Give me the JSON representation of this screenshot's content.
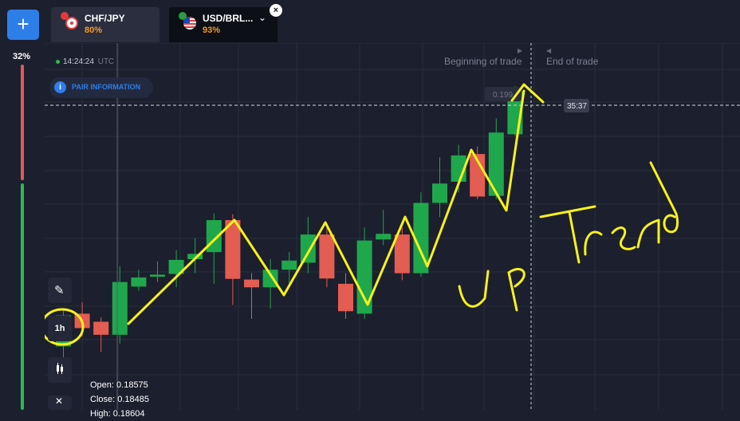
{
  "header": {
    "add_button": "+",
    "tabs": [
      {
        "name": "CHF/JPY",
        "payout": "80%"
      },
      {
        "name": "USD/BRL...",
        "payout": "93%"
      }
    ],
    "close_symbol": "×",
    "dropdown_symbol": "⌄"
  },
  "sidebar": {
    "sentiment_percent": "32%",
    "sentiment_value": 0.32
  },
  "chart": {
    "time": "14:24:24",
    "timezone": "UTC",
    "pair_info_label": "PAIR INFORMATION",
    "pair_info_icon": "i",
    "beginning_label": "Beginning of trade",
    "end_label": "End of trade",
    "price_label": "0.199",
    "countdown": "35:37"
  },
  "toolbar": {
    "timeframe": "1h"
  },
  "ohlc": {
    "open_label": "Open:",
    "open_value": "0.18575",
    "close_label": "Close:",
    "close_value": "0.18485",
    "high_label": "High:",
    "high_value": "0.18604"
  },
  "annotation": {
    "text": "UP Trend"
  },
  "colors": {
    "up": "#1fa74c",
    "down": "#e35d52",
    "accent": "#2e7ee8",
    "payout": "#f59a23",
    "annotation": "#f7f21a"
  },
  "candles": [
    {
      "o": 0.18392,
      "c": 0.1848,
      "h": 0.185,
      "l": 0.1836
    },
    {
      "o": 0.18485,
      "c": 0.18444,
      "h": 0.18517,
      "l": 0.1842
    },
    {
      "o": 0.18462,
      "c": 0.18425,
      "h": 0.18475,
      "l": 0.18376
    },
    {
      "o": 0.18425,
      "c": 0.18575,
      "h": 0.1862,
      "l": 0.184
    },
    {
      "o": 0.18562,
      "c": 0.18588,
      "h": 0.1861,
      "l": 0.1855
    },
    {
      "o": 0.1859,
      "c": 0.18596,
      "h": 0.18634,
      "l": 0.18575
    },
    {
      "o": 0.18598,
      "c": 0.18638,
      "h": 0.18666,
      "l": 0.1856
    },
    {
      "o": 0.1864,
      "c": 0.18655,
      "h": 0.187,
      "l": 0.186
    },
    {
      "o": 0.1866,
      "c": 0.18751,
      "h": 0.1877,
      "l": 0.1857
    },
    {
      "o": 0.18751,
      "c": 0.18584,
      "h": 0.18768,
      "l": 0.1851
    },
    {
      "o": 0.18582,
      "c": 0.1856,
      "h": 0.186,
      "l": 0.1847
    },
    {
      "o": 0.1856,
      "c": 0.1861,
      "h": 0.1864,
      "l": 0.185
    },
    {
      "o": 0.1861,
      "c": 0.18636,
      "h": 0.1866,
      "l": 0.1857
    },
    {
      "o": 0.1863,
      "c": 0.1871,
      "h": 0.1876,
      "l": 0.186
    },
    {
      "o": 0.1871,
      "c": 0.18585,
      "h": 0.1873,
      "l": 0.1856
    },
    {
      "o": 0.1857,
      "c": 0.18492,
      "h": 0.186,
      "l": 0.1847
    },
    {
      "o": 0.18485,
      "c": 0.18693,
      "h": 0.1873,
      "l": 0.1847
    },
    {
      "o": 0.18696,
      "c": 0.18712,
      "h": 0.1878,
      "l": 0.1868
    },
    {
      "o": 0.1871,
      "c": 0.186,
      "h": 0.1873,
      "l": 0.1858
    },
    {
      "o": 0.186,
      "c": 0.188,
      "h": 0.1883,
      "l": 0.1859
    },
    {
      "o": 0.188,
      "c": 0.18855,
      "h": 0.1893,
      "l": 0.1876
    },
    {
      "o": 0.1886,
      "c": 0.18935,
      "h": 0.18965,
      "l": 0.1883
    },
    {
      "o": 0.18939,
      "c": 0.18818,
      "h": 0.1896,
      "l": 0.1881
    },
    {
      "o": 0.1882,
      "c": 0.19,
      "h": 0.1904,
      "l": 0.1881
    },
    {
      "o": 0.18995,
      "c": 0.19118,
      "h": 0.19132,
      "l": 0.1899
    }
  ]
}
